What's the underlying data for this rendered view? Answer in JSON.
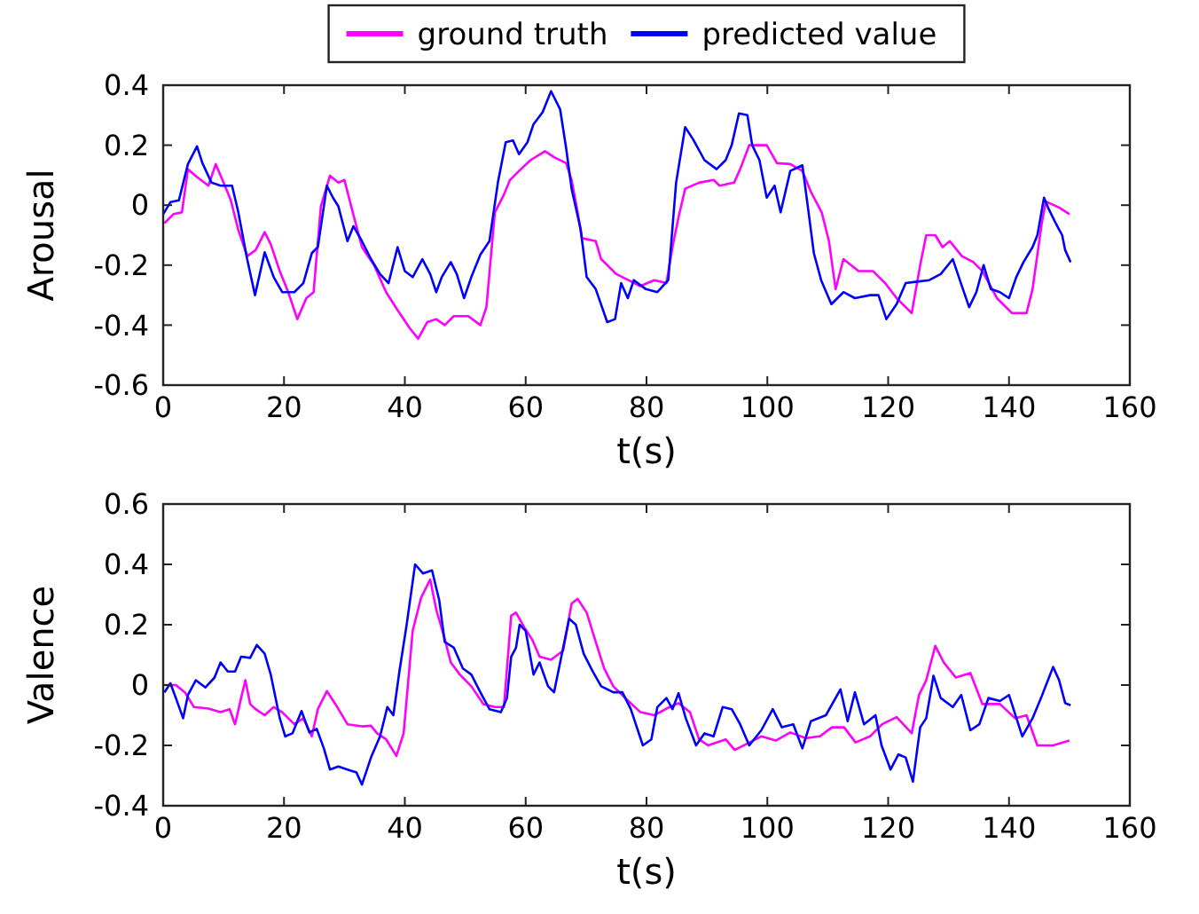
{
  "chart_data": [
    {
      "type": "line",
      "xlabel": "t(s)",
      "ylabel": "Arousal",
      "xlim": [
        0,
        160
      ],
      "xticks": [
        0,
        20,
        40,
        60,
        80,
        100,
        120,
        140,
        160
      ],
      "ylim": [
        -0.6,
        0.4
      ],
      "yticks": [
        -0.6,
        -0.4,
        -0.2,
        0,
        0.2,
        0.4
      ],
      "legend": "top",
      "line_style": "solid",
      "marker": "none",
      "series": [
        {
          "name": "ground truth",
          "color": "#ff00ff",
          "x": [
            0.2,
            1.7,
            3.1,
            4.1,
            5.6,
            7.5,
            8.7,
            10,
            11.2,
            12.4,
            13.9,
            15.3,
            16.8,
            17.8,
            19.3,
            20.7,
            22.2,
            23.7,
            24.9,
            26.1,
            27.6,
            29,
            30,
            31.5,
            32.9,
            34.9,
            36.9,
            38.8,
            40.8,
            42.2,
            43.7,
            45.2,
            46.6,
            48.1,
            50.5,
            52.5,
            53.5,
            54.9,
            56.4,
            57.4,
            58.9,
            60.8,
            63.2,
            64.7,
            66.7,
            67.6,
            68.6,
            69.3,
            71.6,
            72.5,
            75,
            77,
            78.9,
            81.3,
            83.3,
            84.3,
            85.3,
            86.4,
            88.7,
            91.1,
            92.1,
            94.5,
            95.5,
            97,
            99.9,
            101.6,
            103.8,
            105.8,
            107.2,
            109,
            110.2,
            111.3,
            112.6,
            115.1,
            117.5,
            119.5,
            121.4,
            123.9,
            125.3,
            126.3,
            127.8,
            129,
            130.2,
            132.2,
            134.1,
            135.6,
            138,
            140.5,
            142.9,
            143.9,
            145.4,
            146.1,
            148.3,
            150
          ],
          "values": [
            -0.06,
            -0.03,
            -0.024,
            0.12,
            0.094,
            0.065,
            0.137,
            0.075,
            0.016,
            -0.08,
            -0.17,
            -0.15,
            -0.09,
            -0.13,
            -0.22,
            -0.29,
            -0.38,
            -0.31,
            -0.29,
            -0.004,
            0.098,
            0.075,
            0.084,
            -0.033,
            -0.14,
            -0.2,
            -0.29,
            -0.35,
            -0.41,
            -0.445,
            -0.39,
            -0.38,
            -0.4,
            -0.37,
            -0.37,
            -0.4,
            -0.34,
            -0.024,
            0.035,
            0.084,
            0.114,
            0.15,
            0.18,
            0.16,
            0.14,
            0.084,
            -0.024,
            -0.11,
            -0.12,
            -0.18,
            -0.23,
            -0.25,
            -0.27,
            -0.25,
            -0.26,
            -0.14,
            -0.04,
            0.055,
            0.075,
            0.084,
            0.065,
            0.075,
            0.12,
            0.2,
            0.2,
            0.14,
            0.137,
            0.114,
            0.045,
            -0.024,
            -0.12,
            -0.28,
            -0.18,
            -0.22,
            -0.22,
            -0.26,
            -0.31,
            -0.36,
            -0.2,
            -0.1,
            -0.1,
            -0.14,
            -0.12,
            -0.17,
            -0.19,
            -0.22,
            -0.31,
            -0.36,
            -0.36,
            -0.28,
            -0.063,
            0.012,
            -0.008,
            -0.03
          ]
        },
        {
          "name": "predicted value",
          "color": "#0000ff",
          "x": [
            0,
            1.2,
            2.6,
            4.1,
            5.6,
            6.5,
            8,
            9.5,
            11.4,
            12.4,
            13.9,
            15.2,
            16.8,
            18.3,
            19.7,
            21.7,
            23.2,
            24.6,
            25.6,
            27.1,
            28.1,
            29,
            30.5,
            31.5,
            32.9,
            34.4,
            35.9,
            37.3,
            38.8,
            40,
            41.3,
            42.9,
            44.2,
            45.2,
            46.1,
            47.6,
            48.6,
            49.8,
            51,
            52.5,
            54,
            55.4,
            56.7,
            57.9,
            58.9,
            60.3,
            61.3,
            62.8,
            64.2,
            65.7,
            66.7,
            67.6,
            69.1,
            70.1,
            71.6,
            73.5,
            74.8,
            75.8,
            76.9,
            77.9,
            79.9,
            81.8,
            83.6,
            84.9,
            86.4,
            87.7,
            89.6,
            91.6,
            93.1,
            94.1,
            95.3,
            96.7,
            97.5,
            98.7,
            99.9,
            101.2,
            102.2,
            103.8,
            105.8,
            106.7,
            107.7,
            108.9,
            110.6,
            112.6,
            114.5,
            117,
            118.4,
            119.7,
            121.4,
            122.9,
            124.8,
            126.8,
            128.7,
            130.7,
            132.2,
            133.4,
            134.6,
            135.8,
            137,
            138.5,
            140,
            141.2,
            142.4,
            143.9,
            144.7,
            145.8,
            146.6,
            147.8,
            148.8,
            149.3,
            150.2
          ],
          "values": [
            -0.03,
            0.01,
            0.016,
            0.137,
            0.196,
            0.14,
            0.075,
            0.065,
            0.065,
            -0.02,
            -0.18,
            -0.3,
            -0.157,
            -0.24,
            -0.29,
            -0.29,
            -0.26,
            -0.16,
            -0.14,
            0.065,
            0.025,
            -0.004,
            -0.12,
            -0.07,
            -0.12,
            -0.18,
            -0.23,
            -0.26,
            -0.14,
            -0.22,
            -0.24,
            -0.18,
            -0.23,
            -0.29,
            -0.24,
            -0.19,
            -0.23,
            -0.31,
            -0.24,
            -0.165,
            -0.12,
            0.075,
            0.21,
            0.216,
            0.17,
            0.21,
            0.27,
            0.31,
            0.38,
            0.32,
            0.19,
            0.055,
            -0.08,
            -0.24,
            -0.28,
            -0.39,
            -0.38,
            -0.26,
            -0.31,
            -0.25,
            -0.28,
            -0.29,
            -0.25,
            0.075,
            0.26,
            0.22,
            0.15,
            0.12,
            0.15,
            0.2,
            0.306,
            0.3,
            0.2,
            0.15,
            0.025,
            0.065,
            -0.024,
            0.114,
            0.133,
            -0.004,
            -0.16,
            -0.25,
            -0.33,
            -0.29,
            -0.31,
            -0.3,
            -0.3,
            -0.38,
            -0.33,
            -0.26,
            -0.255,
            -0.25,
            -0.23,
            -0.18,
            -0.27,
            -0.34,
            -0.29,
            -0.2,
            -0.28,
            -0.29,
            -0.31,
            -0.24,
            -0.19,
            -0.14,
            -0.1,
            0.025,
            -0.014,
            -0.063,
            -0.1,
            -0.15,
            -0.19
          ]
        }
      ]
    },
    {
      "type": "line",
      "xlabel": "t(s)",
      "ylabel": "Valence",
      "xlim": [
        0,
        160
      ],
      "xticks": [
        0,
        20,
        40,
        60,
        80,
        100,
        120,
        140,
        160
      ],
      "ylim": [
        -0.4,
        0.6
      ],
      "yticks": [
        -0.4,
        -0.2,
        0,
        0.2,
        0.4,
        0.6
      ],
      "line_style": "solid",
      "marker": "none",
      "series": [
        {
          "color": "#ff00ff",
          "x": [
            0.2,
            2.1,
            3.6,
            5.1,
            7.5,
            9.5,
            11,
            11.9,
            12.9,
            13.6,
            14.4,
            15.3,
            16.8,
            18.3,
            19.7,
            21.7,
            23.2,
            24.6,
            25.6,
            27.1,
            28.5,
            30.5,
            32.9,
            34.4,
            35.4,
            36.9,
            38.6,
            39.8,
            41.3,
            42.7,
            44.2,
            45.2,
            46.6,
            47.6,
            49.1,
            51,
            53,
            54.9,
            56.4,
            57.6,
            58.4,
            59.8,
            61.1,
            62.3,
            64.2,
            66.2,
            67.6,
            68.6,
            70.1,
            71.6,
            73,
            74.5,
            77,
            79,
            81.3,
            83.3,
            85.3,
            87.2,
            88.7,
            90.2,
            93.1,
            94.6,
            96.5,
            99,
            101.4,
            103.8,
            106.3,
            108.7,
            110.7,
            112.7,
            114.6,
            117,
            119,
            121.4,
            123.9,
            125.1,
            126.3,
            127.8,
            129.2,
            131.2,
            133.6,
            135.6,
            138.5,
            141,
            142.9,
            144.7,
            147.3,
            150
          ],
          "values": [
            0,
            0,
            -0.024,
            -0.073,
            -0.078,
            -0.09,
            -0.08,
            -0.13,
            -0.043,
            0.016,
            -0.063,
            -0.08,
            -0.1,
            -0.073,
            -0.09,
            -0.13,
            -0.11,
            -0.17,
            -0.08,
            -0.02,
            -0.063,
            -0.13,
            -0.137,
            -0.135,
            -0.16,
            -0.18,
            -0.235,
            -0.16,
            0.18,
            0.29,
            0.35,
            0.25,
            0.153,
            0.075,
            0.035,
            -0.004,
            -0.063,
            -0.073,
            -0.073,
            0.23,
            0.24,
            0.19,
            0.15,
            0.094,
            0.084,
            0.114,
            0.27,
            0.286,
            0.24,
            0.143,
            0.055,
            -0.004,
            -0.053,
            -0.09,
            -0.1,
            -0.078,
            -0.06,
            -0.09,
            -0.18,
            -0.2,
            -0.18,
            -0.215,
            -0.196,
            -0.17,
            -0.184,
            -0.157,
            -0.176,
            -0.17,
            -0.14,
            -0.14,
            -0.19,
            -0.17,
            -0.13,
            -0.106,
            -0.16,
            -0.033,
            0.016,
            0.13,
            0.075,
            0.025,
            0.04,
            -0.063,
            -0.063,
            -0.11,
            -0.1,
            -0.2,
            -0.2,
            -0.184
          ]
        },
        {
          "color": "#0000ff",
          "x": [
            0.2,
            1.2,
            2.1,
            3.3,
            4.1,
            5.4,
            7,
            8.5,
            9.5,
            10.7,
            11.9,
            12.9,
            14.4,
            15.5,
            16.8,
            17.8,
            19.3,
            20.2,
            21.4,
            22.9,
            24.2,
            25.4,
            26.6,
            27.6,
            29,
            30.5,
            32,
            32.9,
            34.4,
            35.9,
            37.1,
            38.1,
            39.1,
            40.3,
            41.7,
            43,
            44.5,
            45.7,
            46.6,
            48.1,
            49.6,
            51,
            52.5,
            54,
            55.9,
            56.9,
            57.6,
            58.4,
            59,
            60,
            61.3,
            62.3,
            63.7,
            64.7,
            65.9,
            67.2,
            68.3,
            69.6,
            71.1,
            72.5,
            74.5,
            76,
            77.4,
            79.4,
            80.8,
            81.8,
            83.3,
            84.3,
            85.3,
            86.5,
            88.2,
            89.6,
            91.1,
            92.6,
            94.1,
            95.5,
            97,
            99,
            100.9,
            102.4,
            104.3,
            105.8,
            107.2,
            109.7,
            112.1,
            113.3,
            114.5,
            116,
            117.9,
            118.9,
            120.4,
            121.7,
            122.9,
            124.1,
            125.3,
            126.3,
            127.5,
            128.7,
            130.7,
            132.1,
            133.6,
            135.1,
            136.6,
            138.5,
            140,
            142.2,
            143.9,
            145.3,
            147.3,
            148.3,
            149.3,
            150.2
          ],
          "values": [
            -0.024,
            0.006,
            -0.043,
            -0.11,
            -0.033,
            0.016,
            -0.008,
            0.025,
            0.075,
            0.045,
            0.045,
            0.094,
            0.09,
            0.133,
            0.104,
            0.035,
            -0.11,
            -0.17,
            -0.16,
            -0.086,
            -0.157,
            -0.145,
            -0.21,
            -0.28,
            -0.27,
            -0.28,
            -0.29,
            -0.33,
            -0.24,
            -0.17,
            -0.073,
            -0.1,
            0.045,
            0.2,
            0.4,
            0.37,
            0.38,
            0.28,
            0.143,
            0.124,
            0.055,
            0.035,
            -0.024,
            -0.08,
            -0.09,
            -0.043,
            0.094,
            0.124,
            0.2,
            0.18,
            0.035,
            0.075,
            -0.004,
            -0.024,
            0.094,
            0.22,
            0.2,
            0.104,
            0.045,
            -0.004,
            -0.024,
            -0.024,
            -0.08,
            -0.2,
            -0.18,
            -0.073,
            -0.043,
            -0.08,
            -0.027,
            -0.11,
            -0.2,
            -0.16,
            -0.17,
            -0.073,
            -0.08,
            -0.13,
            -0.2,
            -0.15,
            -0.08,
            -0.14,
            -0.13,
            -0.21,
            -0.12,
            -0.1,
            -0.014,
            -0.12,
            -0.024,
            -0.13,
            -0.1,
            -0.2,
            -0.28,
            -0.23,
            -0.24,
            -0.32,
            -0.14,
            -0.11,
            0.031,
            -0.043,
            -0.073,
            -0.033,
            -0.15,
            -0.13,
            -0.043,
            -0.053,
            -0.033,
            -0.17,
            -0.11,
            -0.043,
            0.06,
            0.016,
            -0.06,
            -0.067
          ]
        }
      ]
    }
  ]
}
